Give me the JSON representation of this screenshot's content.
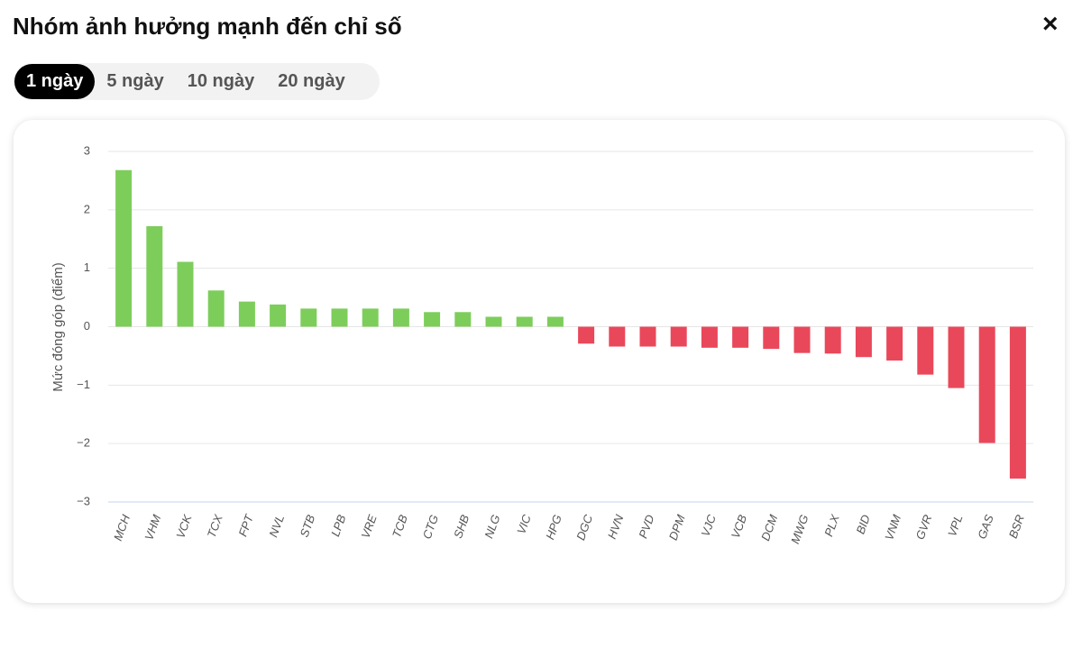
{
  "title": "Nhóm ảnh hưởng mạnh đến chỉ số",
  "tabs": [
    "1 ngày",
    "5 ngày",
    "10 ngày",
    "20 ngày"
  ],
  "active_tab": 0,
  "close": "×",
  "chart_data": {
    "type": "bar",
    "ylabel": "Mức đóng góp (điểm)",
    "categories": [
      "MCH",
      "VHM",
      "VCK",
      "TCX",
      "FPT",
      "NVL",
      "STB",
      "LPB",
      "VRE",
      "TCB",
      "CTG",
      "SHB",
      "NLG",
      "VIC",
      "HPG",
      "DGC",
      "HVN",
      "PVD",
      "DPM",
      "VJC",
      "VCB",
      "DCM",
      "MWG",
      "PLX",
      "BID",
      "VNM",
      "GVR",
      "VPL",
      "GAS",
      "BSR"
    ],
    "values": [
      2.68,
      1.72,
      1.11,
      0.62,
      0.43,
      0.38,
      0.31,
      0.31,
      0.31,
      0.31,
      0.25,
      0.25,
      0.17,
      0.17,
      0.17,
      -0.29,
      -0.34,
      -0.34,
      -0.34,
      -0.36,
      -0.36,
      -0.38,
      -0.45,
      -0.46,
      -0.52,
      -0.58,
      -0.82,
      -1.05,
      -1.99,
      -2.6
    ],
    "positive_color": "#7dcd5b",
    "negative_color": "#e9485a",
    "ylim": [
      -3,
      3
    ],
    "yticks": [
      {
        "value": -3,
        "label": "−3"
      },
      {
        "value": -2,
        "label": "−2"
      },
      {
        "value": -1,
        "label": "−1"
      },
      0,
      1,
      2,
      3
    ],
    "grid": true
  }
}
